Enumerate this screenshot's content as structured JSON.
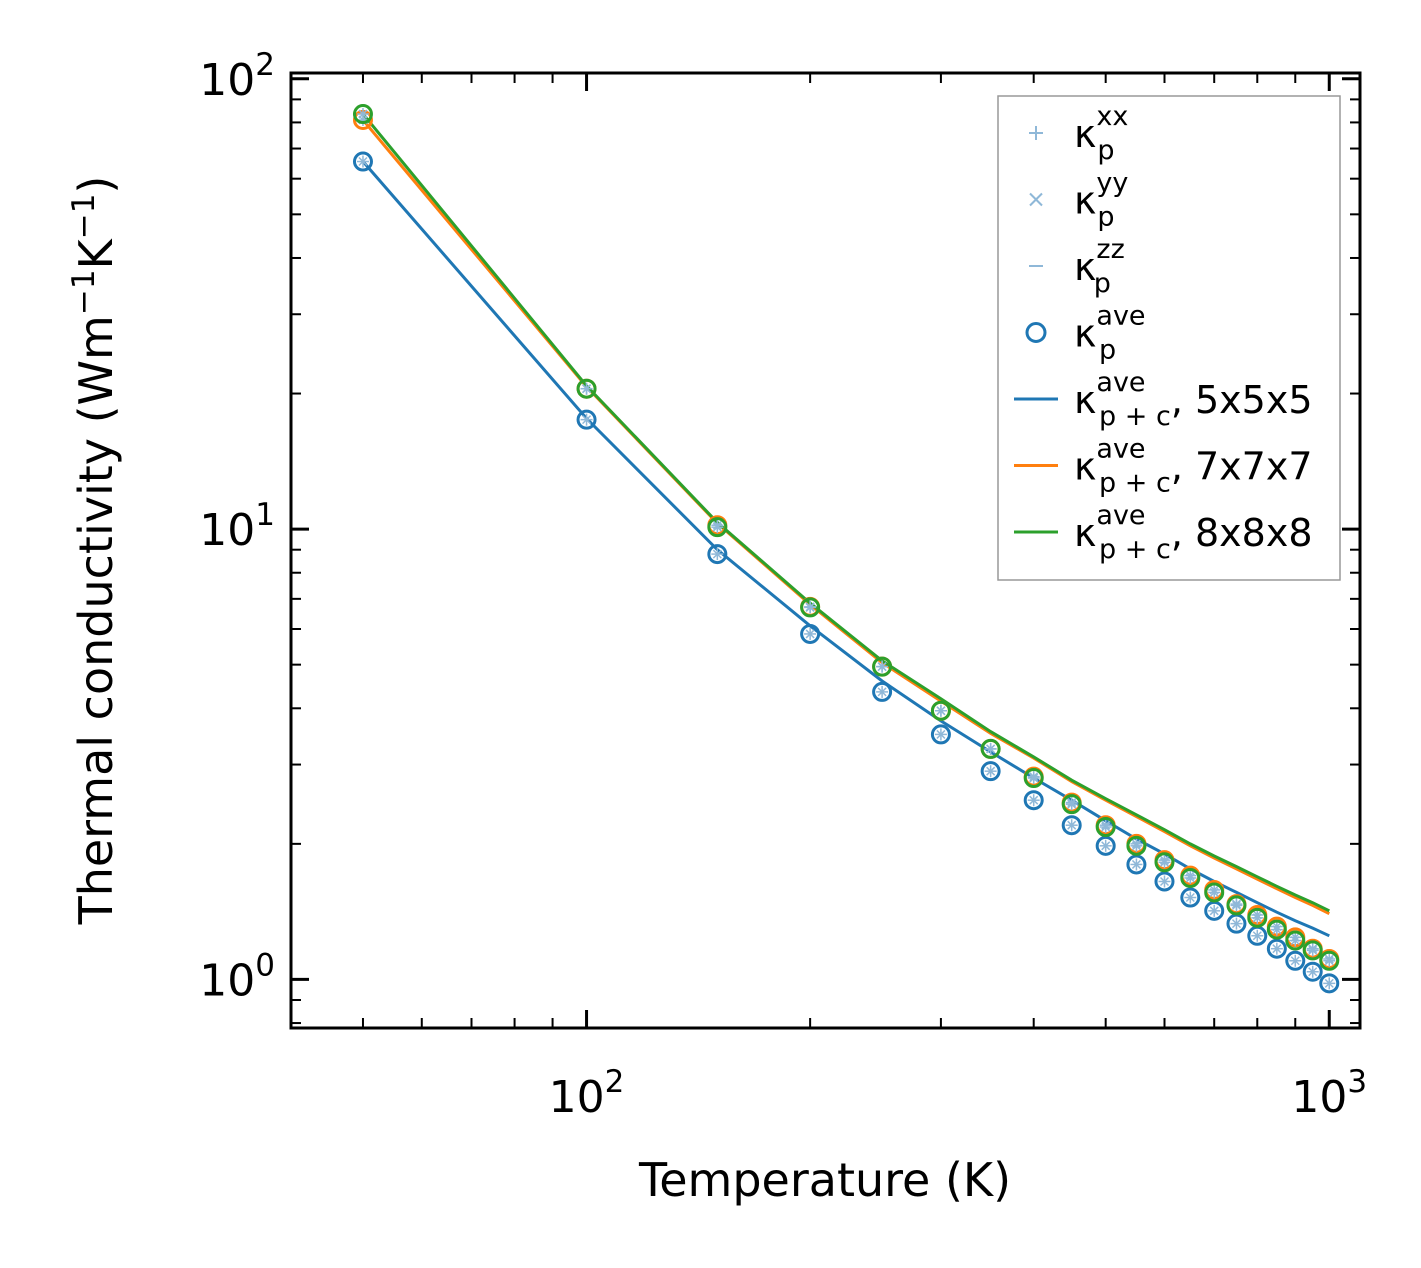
{
  "chart_data": {
    "type": "line",
    "title": "",
    "xlabel": "Temperature (K)",
    "ylabel": {
      "main": "Thermal conductivity (Wm",
      "exp1": "−1",
      "mid": "K",
      "exp2": "−1",
      "end": ")"
    },
    "xscale": "log",
    "yscale": "log",
    "xlim": [
      40,
      1100
    ],
    "ylim": [
      0.78,
      103
    ],
    "xticks": [
      {
        "base": "10",
        "exp": "2",
        "value": 100
      },
      {
        "base": "10",
        "exp": "3",
        "value": 1000
      }
    ],
    "yticks": [
      {
        "base": "10",
        "exp": "0",
        "value": 1
      },
      {
        "base": "10",
        "exp": "1",
        "value": 10
      },
      {
        "base": "10",
        "exp": "2",
        "value": 100
      }
    ],
    "legend_position": "top-right",
    "temperatures": [
      50,
      100,
      150,
      200,
      250,
      300,
      350,
      400,
      450,
      500,
      550,
      600,
      650,
      700,
      750,
      800,
      850,
      900,
      950,
      1000
    ],
    "series": [
      {
        "name": "5x5x5",
        "color": "#1f77b4",
        "kp_ave": [
          65.5,
          17.5,
          8.8,
          5.85,
          4.35,
          3.5,
          2.9,
          2.5,
          2.2,
          1.98,
          1.8,
          1.65,
          1.52,
          1.42,
          1.33,
          1.25,
          1.17,
          1.1,
          1.04,
          0.98
        ],
        "kpc_ave": [
          65.5,
          17.6,
          9.0,
          6.1,
          4.6,
          3.75,
          3.2,
          2.8,
          2.5,
          2.25,
          2.05,
          1.9,
          1.76,
          1.65,
          1.56,
          1.48,
          1.41,
          1.35,
          1.3,
          1.25
        ]
      },
      {
        "name": "7x7x7",
        "color": "#ff7f0e",
        "kp_ave": [
          81.0,
          20.5,
          10.2,
          6.72,
          4.95,
          3.95,
          3.25,
          2.82,
          2.47,
          2.2,
          2.0,
          1.84,
          1.7,
          1.58,
          1.47,
          1.39,
          1.31,
          1.24,
          1.17,
          1.11
        ],
        "kpc_ave": [
          81.0,
          20.7,
          10.3,
          6.8,
          5.05,
          4.15,
          3.52,
          3.1,
          2.75,
          2.5,
          2.3,
          2.13,
          1.98,
          1.86,
          1.76,
          1.67,
          1.59,
          1.52,
          1.46,
          1.4
        ]
      },
      {
        "name": "8x8x8",
        "color": "#2ca02c",
        "kp_ave": [
          83.5,
          20.5,
          10.1,
          6.7,
          4.95,
          3.95,
          3.25,
          2.8,
          2.45,
          2.18,
          1.98,
          1.82,
          1.68,
          1.56,
          1.46,
          1.37,
          1.29,
          1.22,
          1.16,
          1.1
        ],
        "kpc_ave": [
          83.5,
          20.8,
          10.35,
          6.85,
          5.1,
          4.2,
          3.55,
          3.12,
          2.77,
          2.52,
          2.32,
          2.15,
          2.0,
          1.88,
          1.78,
          1.69,
          1.61,
          1.54,
          1.48,
          1.42
        ]
      }
    ],
    "legend": [
      {
        "kind": "plus",
        "symbol": "κ",
        "sub": "p",
        "sup": "xx",
        "suffix": "",
        "color": "#8fb8d8"
      },
      {
        "kind": "cross",
        "symbol": "κ",
        "sub": "p",
        "sup": "yy",
        "suffix": "",
        "color": "#8fb8d8"
      },
      {
        "kind": "dash",
        "symbol": "κ",
        "sub": "p",
        "sup": "zz",
        "suffix": "",
        "color": "#8fb8d8"
      },
      {
        "kind": "circle",
        "symbol": "κ",
        "sub": "p",
        "sup": "ave",
        "suffix": "",
        "color": "#1f77b4"
      },
      {
        "kind": "line",
        "symbol": "κ",
        "sub": "p + c",
        "sup": "ave",
        "suffix": ", 5x5x5",
        "color": "#1f77b4"
      },
      {
        "kind": "line",
        "symbol": "κ",
        "sub": "p + c",
        "sup": "ave",
        "suffix": ", 7x7x7",
        "color": "#ff7f0e"
      },
      {
        "kind": "line",
        "symbol": "κ",
        "sub": "p + c",
        "sup": "ave",
        "suffix": ", 8x8x8",
        "color": "#2ca02c"
      }
    ]
  }
}
